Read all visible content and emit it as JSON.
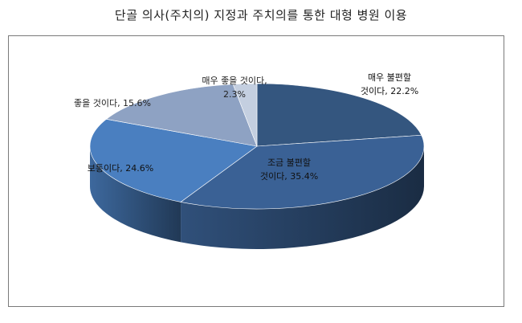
{
  "chart_data": {
    "type": "pie",
    "title": "단골 의사(주치의) 지정과 주치의를 통한 대형 병원 이용",
    "slices": [
      {
        "name": "매우 불편할 것이다",
        "value": 22.2,
        "label_lines": [
          "매우 불편할",
          "것이다, 22.2%"
        ],
        "color": "#34567f"
      },
      {
        "name": "조금 불편할 것이다",
        "value": 35.4,
        "label_lines": [
          "조금 불편할",
          "것이다, 35.4%"
        ],
        "color": "#3a6195"
      },
      {
        "name": "보통이다",
        "value": 24.6,
        "label_lines": [
          "보통이다, 24.6%"
        ],
        "color": "#4a7fc0"
      },
      {
        "name": "좋을 것이다",
        "value": 15.6,
        "label_lines": [
          "좋을 것이다, 15.6%"
        ],
        "color": "#8ea2c3"
      },
      {
        "name": "매우 좋을 것이다",
        "value": 2.3,
        "label_lines": [
          "매우 좋을 것이다,",
          "2.3%"
        ],
        "color": "#c4cfe0"
      }
    ],
    "legend": "none",
    "grid": false
  }
}
